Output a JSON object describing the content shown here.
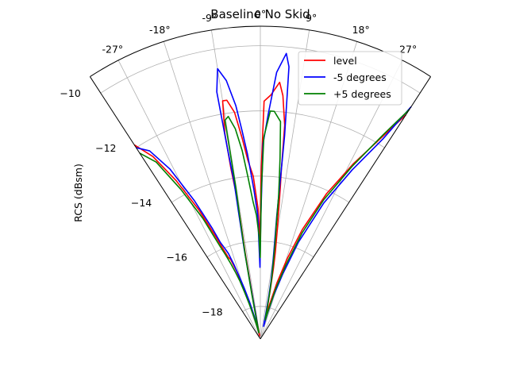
{
  "chart_data": {
    "type": "line",
    "projection": "polar-sector",
    "title": "Baseline No Skid",
    "ylabel": "RCS (dBsm)",
    "theta_range_deg": [
      -33,
      33
    ],
    "theta_ticks": [
      -27,
      -18,
      -9,
      0,
      9,
      18,
      27
    ],
    "theta_tick_labels": [
      "-27°",
      "-18°",
      "-9°",
      "0°",
      "9°",
      "18°",
      "27°"
    ],
    "r_range": [
      -19,
      -9.4
    ],
    "r_ticks": [
      -18,
      -16,
      -14,
      -12,
      -10
    ],
    "r_tick_labels": [
      "−18",
      "−16",
      "−14",
      "−12",
      "−10"
    ],
    "grid": true,
    "legend_position": "top-right",
    "series": [
      {
        "name": "level",
        "color": "#ff0000",
        "points": [
          [
            -33,
            -11.9
          ],
          [
            -30.5,
            -12.5
          ],
          [
            -28,
            -13.5
          ],
          [
            -25.5,
            -14.6
          ],
          [
            -23.5,
            -15.6
          ],
          [
            -22.5,
            -16.0
          ],
          [
            -21.5,
            -16.3
          ],
          [
            -20.5,
            -16.4
          ],
          [
            -19.3,
            -16.8
          ],
          [
            -18.5,
            -17.2
          ],
          [
            -17.3,
            -17.6
          ],
          [
            -16.3,
            -17.9
          ],
          [
            -15,
            -18.4
          ],
          [
            -14,
            -18.7
          ],
          [
            -12.5,
            -18.9
          ],
          [
            -11,
            -18.6
          ],
          [
            -10.5,
            -17.8
          ],
          [
            -10,
            -16.3
          ],
          [
            -9.5,
            -15.2
          ],
          [
            -9.5,
            -14.4
          ],
          [
            -9.8,
            -13.7
          ],
          [
            -9.8,
            -12.6
          ],
          [
            -9,
            -11.6
          ],
          [
            -8,
            -11.6
          ],
          [
            -6.5,
            -12.0
          ],
          [
            -5.2,
            -12.8
          ],
          [
            -4,
            -13.5
          ],
          [
            -2.5,
            -14.0
          ],
          [
            -1,
            -15.0
          ],
          [
            -0.3,
            -16.0
          ],
          [
            0.3,
            -13.8
          ],
          [
            0.9,
            -11.7
          ],
          [
            2.5,
            -11.5
          ],
          [
            4.3,
            -11.1
          ],
          [
            5.3,
            -11.5
          ],
          [
            6.5,
            -12.4
          ],
          [
            7.1,
            -13.8
          ],
          [
            7.5,
            -14.3
          ],
          [
            8.1,
            -15.0
          ],
          [
            8.8,
            -15.6
          ],
          [
            9.8,
            -16.3
          ],
          [
            10.5,
            -16.8
          ],
          [
            11.3,
            -17.4
          ],
          [
            12,
            -17.8
          ],
          [
            13,
            -18.1
          ],
          [
            14.2,
            -18.2
          ],
          [
            15,
            -17.9
          ],
          [
            16.5,
            -17.2
          ],
          [
            18.5,
            -16.4
          ],
          [
            21,
            -15.4
          ],
          [
            24.5,
            -14.1
          ],
          [
            28,
            -12.9
          ],
          [
            31,
            -11.8
          ],
          [
            33,
            -10.8
          ]
        ]
      },
      {
        "name": "-5 degrees",
        "color": "#0000ff",
        "points": [
          [
            -33,
            -12.0
          ],
          [
            -30.5,
            -12.3
          ],
          [
            -28,
            -13.1
          ],
          [
            -25.5,
            -14.3
          ],
          [
            -23.5,
            -15.3
          ],
          [
            -22.5,
            -15.8
          ],
          [
            -21.5,
            -16.0
          ],
          [
            -20.5,
            -16.2
          ],
          [
            -19.5,
            -16.6
          ],
          [
            -18.6,
            -17.0
          ],
          [
            -17.5,
            -17.4
          ],
          [
            -16.3,
            -17.8
          ],
          [
            -15,
            -18.3
          ],
          [
            -14,
            -18.6
          ],
          [
            -12.5,
            -18.7
          ],
          [
            -11,
            -18.5
          ],
          [
            -10.5,
            -17.6
          ],
          [
            -10.2,
            -16.2
          ],
          [
            -9.8,
            -15.2
          ],
          [
            -9.5,
            -14.1
          ],
          [
            -9.8,
            -13.1
          ],
          [
            -10,
            -11.3
          ],
          [
            -9,
            -10.6
          ],
          [
            -7.5,
            -11.0
          ],
          [
            -6,
            -11.8
          ],
          [
            -5,
            -12.6
          ],
          [
            -4,
            -13.3
          ],
          [
            -2.5,
            -14.4
          ],
          [
            -1.2,
            -15.2
          ],
          [
            -0.3,
            -16.8
          ],
          [
            0.2,
            -15.3
          ],
          [
            0.8,
            -13.0
          ],
          [
            2,
            -12.1
          ],
          [
            3.5,
            -10.8
          ],
          [
            5.2,
            -10.2
          ],
          [
            6,
            -10.6
          ],
          [
            6.8,
            -12.7
          ],
          [
            7.1,
            -13.9
          ],
          [
            7.6,
            -15.2
          ],
          [
            8.4,
            -16.0
          ],
          [
            9.5,
            -16.7
          ],
          [
            10.5,
            -17.2
          ],
          [
            11.3,
            -17.7
          ],
          [
            12.2,
            -18.2
          ],
          [
            13.2,
            -18.5
          ],
          [
            14.3,
            -18.6
          ],
          [
            15.5,
            -18.2
          ],
          [
            17,
            -17.6
          ],
          [
            19,
            -16.9
          ],
          [
            21.5,
            -15.8
          ],
          [
            25,
            -14.4
          ],
          [
            28.5,
            -13.1
          ],
          [
            31.5,
            -11.8
          ],
          [
            33,
            -10.5
          ]
        ]
      },
      {
        "name": "+5 degrees",
        "color": "#008000",
        "points": [
          [
            -33,
            -12.2
          ],
          [
            -30.5,
            -12.7
          ],
          [
            -28,
            -13.8
          ],
          [
            -25.5,
            -14.9
          ],
          [
            -23.5,
            -15.9
          ],
          [
            -22.5,
            -16.2
          ],
          [
            -21.5,
            -16.5
          ],
          [
            -20.5,
            -16.8
          ],
          [
            -19.5,
            -17.1
          ],
          [
            -18.6,
            -17.5
          ],
          [
            -17.5,
            -17.9
          ],
          [
            -16.5,
            -18.2
          ],
          [
            -15.2,
            -18.5
          ],
          [
            -14,
            -18.8
          ],
          [
            -12.5,
            -18.8
          ],
          [
            -11.3,
            -18.3
          ],
          [
            -10.8,
            -17.6
          ],
          [
            -10.2,
            -16.4
          ],
          [
            -9.6,
            -15.3
          ],
          [
            -9.2,
            -14.3
          ],
          [
            -9.2,
            -13.2
          ],
          [
            -9.2,
            -12.2
          ],
          [
            -8.2,
            -12.1
          ],
          [
            -6.8,
            -12.5
          ],
          [
            -5.5,
            -13.2
          ],
          [
            -4.4,
            -14.0
          ],
          [
            -3,
            -14.8
          ],
          [
            -1.8,
            -15.2
          ],
          [
            -0.8,
            -15.8
          ],
          [
            -0.1,
            -16.5
          ],
          [
            0.4,
            -14.4
          ],
          [
            1,
            -12.8
          ],
          [
            2.5,
            -12.0
          ],
          [
            3.5,
            -12.0
          ],
          [
            5.3,
            -12.3
          ],
          [
            6.2,
            -13.4
          ],
          [
            6.8,
            -14.1
          ],
          [
            7.3,
            -14.6
          ],
          [
            8,
            -15.5
          ],
          [
            8.7,
            -16.0
          ],
          [
            9.6,
            -16.6
          ],
          [
            10.6,
            -17.1
          ],
          [
            11.5,
            -17.6
          ],
          [
            12.4,
            -18.0
          ],
          [
            13.4,
            -18.3
          ],
          [
            14.4,
            -18.4
          ],
          [
            15.6,
            -18.1
          ],
          [
            17,
            -17.4
          ],
          [
            19,
            -16.6
          ],
          [
            21.5,
            -15.5
          ],
          [
            24.5,
            -14.3
          ],
          [
            28,
            -13.0
          ],
          [
            31,
            -11.7
          ],
          [
            33,
            -10.6
          ]
        ]
      }
    ]
  }
}
